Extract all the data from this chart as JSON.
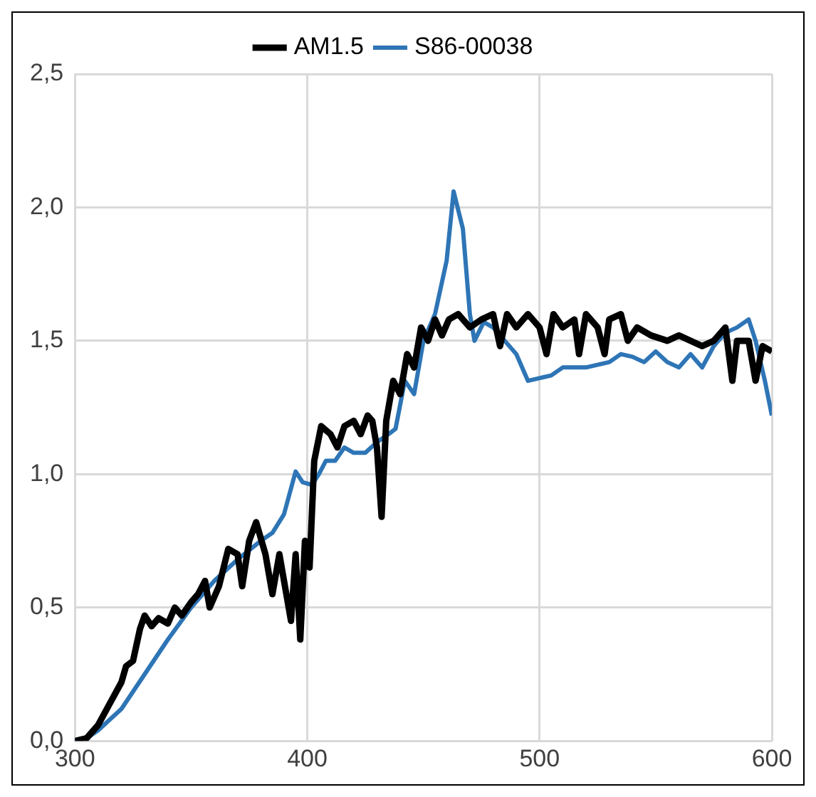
{
  "chart_data": {
    "type": "line",
    "x": [
      300,
      305,
      310,
      315,
      320,
      322,
      325,
      328,
      330,
      333,
      336,
      340,
      343,
      346,
      350,
      353,
      356,
      358,
      362,
      366,
      370,
      372,
      375,
      378,
      382,
      385,
      388,
      390,
      393,
      395,
      397,
      399,
      401,
      403,
      406,
      410,
      413,
      416,
      420,
      423,
      426,
      428,
      430,
      432,
      434,
      437,
      440,
      443,
      446,
      449,
      452,
      455,
      458,
      461,
      465,
      470,
      475,
      480,
      483,
      486,
      490,
      495,
      500,
      503,
      506,
      510,
      515,
      517,
      520,
      525,
      528,
      530,
      535,
      538,
      542,
      548,
      555,
      560,
      565,
      570,
      575,
      580,
      583,
      585,
      590,
      593,
      596,
      600
    ],
    "series": [
      {
        "name": "AM1.5",
        "color": "#000000",
        "values": [
          0,
          0.01,
          0.06,
          0.14,
          0.22,
          0.28,
          0.3,
          0.42,
          0.47,
          0.43,
          0.46,
          0.44,
          0.5,
          0.47,
          0.52,
          0.55,
          0.6,
          0.5,
          0.58,
          0.72,
          0.7,
          0.58,
          0.75,
          0.82,
          0.7,
          0.55,
          0.7,
          0.6,
          0.45,
          0.7,
          0.38,
          0.75,
          0.65,
          1.05,
          1.18,
          1.15,
          1.1,
          1.18,
          1.2,
          1.15,
          1.22,
          1.2,
          1.1,
          0.84,
          1.2,
          1.35,
          1.3,
          1.45,
          1.4,
          1.55,
          1.5,
          1.58,
          1.52,
          1.58,
          1.6,
          1.55,
          1.58,
          1.6,
          1.48,
          1.6,
          1.55,
          1.6,
          1.55,
          1.45,
          1.6,
          1.55,
          1.58,
          1.45,
          1.6,
          1.55,
          1.45,
          1.58,
          1.6,
          1.5,
          1.55,
          1.52,
          1.5,
          1.52,
          1.5,
          1.48,
          1.5,
          1.55,
          1.35,
          1.5,
          1.5,
          1.35,
          1.48,
          1.46
        ]
      },
      {
        "name": "S86-00038",
        "color": "#2e75b6",
        "x": [
          300,
          305,
          310,
          320,
          330,
          340,
          350,
          360,
          370,
          380,
          385,
          390,
          395,
          398,
          402,
          405,
          408,
          412,
          416,
          420,
          425,
          430,
          435,
          438,
          442,
          446,
          450,
          455,
          460,
          463,
          467,
          470,
          472,
          476,
          480,
          485,
          490,
          495,
          500,
          505,
          510,
          520,
          530,
          535,
          540,
          545,
          550,
          555,
          560,
          565,
          570,
          575,
          580,
          585,
          590,
          593,
          597,
          600
        ],
        "values": [
          0,
          0.01,
          0.04,
          0.12,
          0.25,
          0.38,
          0.5,
          0.6,
          0.68,
          0.75,
          0.78,
          0.85,
          1.01,
          0.97,
          0.96,
          1.0,
          1.05,
          1.05,
          1.1,
          1.08,
          1.08,
          1.12,
          1.15,
          1.17,
          1.35,
          1.3,
          1.5,
          1.6,
          1.8,
          2.06,
          1.92,
          1.6,
          1.5,
          1.57,
          1.55,
          1.5,
          1.45,
          1.35,
          1.36,
          1.37,
          1.4,
          1.4,
          1.42,
          1.45,
          1.44,
          1.42,
          1.46,
          1.42,
          1.4,
          1.45,
          1.4,
          1.48,
          1.53,
          1.55,
          1.58,
          1.5,
          1.35,
          1.22
        ]
      }
    ],
    "xlim": [
      300,
      600
    ],
    "xticks": [
      300,
      400,
      500,
      600
    ],
    "ylim": [
      0,
      2.5
    ],
    "yticks": [
      {
        "value": 0,
        "label": "0,0"
      },
      {
        "value": 0.5,
        "label": "0,5"
      },
      {
        "value": 1,
        "label": "1,0"
      },
      {
        "value": 1.5,
        "label": "1,5"
      },
      {
        "value": 2,
        "label": "2,0"
      },
      {
        "value": 2.5,
        "label": "2,5"
      }
    ],
    "grid": true,
    "legend": "top",
    "marker": "none",
    "line_style": "solid"
  }
}
